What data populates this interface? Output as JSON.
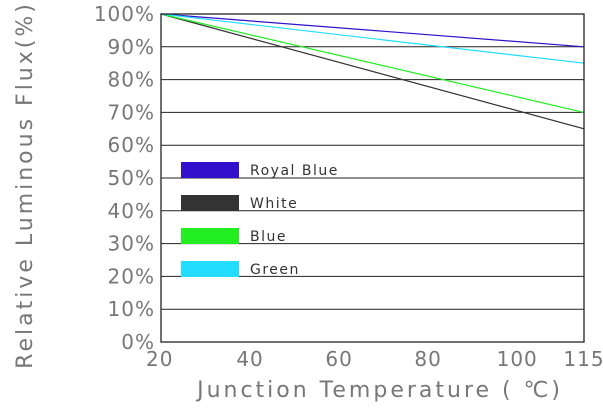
{
  "chart_data": {
    "type": "line",
    "xlabel": "Junction Temperature ( ℃)",
    "ylabel": "Relative Luminous Flux(%)",
    "xlim": [
      20,
      115
    ],
    "ylim": [
      0,
      100
    ],
    "x_ticks": [
      20,
      40,
      60,
      80,
      100,
      115
    ],
    "x_tick_labels": [
      "20",
      "40",
      "60",
      "80",
      "100",
      "115"
    ],
    "y_ticks": [
      0,
      10,
      20,
      30,
      40,
      50,
      60,
      70,
      80,
      90,
      100
    ],
    "y_tick_labels": [
      "0%",
      "10%",
      "20%",
      "30%",
      "40%",
      "50%",
      "60%",
      "70%",
      "80%",
      "90%",
      "100%"
    ],
    "grid": "horizontal",
    "legend_position": "left-center",
    "series": [
      {
        "name": "Royal Blue",
        "color": "#3311cc",
        "x": [
          20,
          115
        ],
        "y": [
          100,
          90
        ]
      },
      {
        "name": "White",
        "color": "#333333",
        "x": [
          20,
          115
        ],
        "y": [
          100,
          65
        ]
      },
      {
        "name": "Blue",
        "color": "#22ee22",
        "x": [
          20,
          115
        ],
        "y": [
          100,
          70
        ]
      },
      {
        "name": "Green",
        "color": "#22ddff",
        "x": [
          20,
          115
        ],
        "y": [
          100,
          85
        ]
      }
    ]
  }
}
